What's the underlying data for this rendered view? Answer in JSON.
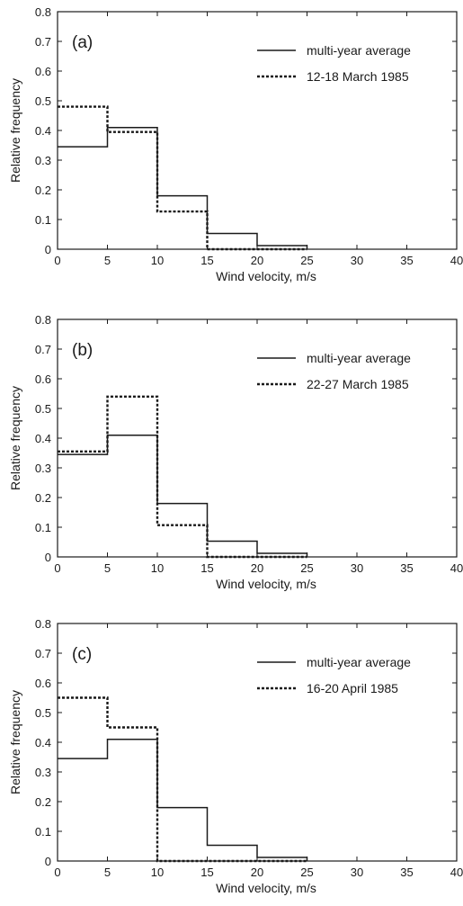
{
  "chart_data": [
    {
      "type": "line",
      "panel_label": "(a)",
      "xlabel": "Wind velocity, m/s",
      "ylabel": "Relative frequency",
      "xlim": [
        0,
        40
      ],
      "ylim": [
        0,
        0.8
      ],
      "x_ticks": [
        "0",
        "5",
        "10",
        "15",
        "20",
        "25",
        "30",
        "35",
        "40"
      ],
      "y_ticks": [
        "0",
        "0.1",
        "0.2",
        "0.3",
        "0.4",
        "0.5",
        "0.6",
        "0.7",
        "0.8"
      ],
      "grid": false,
      "legend_position": "top-right",
      "bin_edges": [
        0,
        5,
        10,
        15,
        20,
        25
      ],
      "series": [
        {
          "name": "multi-year average",
          "style": "solid",
          "values": [
            0.345,
            0.41,
            0.18,
            0.053,
            0.012
          ]
        },
        {
          "name": "12-18 March 1985",
          "style": "dashed",
          "values": [
            0.48,
            0.395,
            0.127,
            0,
            0
          ]
        }
      ]
    },
    {
      "type": "line",
      "panel_label": "(b)",
      "xlabel": "Wind velocity, m/s",
      "ylabel": "Relative frequency",
      "xlim": [
        0,
        40
      ],
      "ylim": [
        0,
        0.8
      ],
      "x_ticks": [
        "0",
        "5",
        "10",
        "15",
        "20",
        "25",
        "30",
        "35",
        "40"
      ],
      "y_ticks": [
        "0",
        "0.1",
        "0.2",
        "0.3",
        "0.4",
        "0.5",
        "0.6",
        "0.7",
        "0.8"
      ],
      "grid": false,
      "legend_position": "top-right",
      "bin_edges": [
        0,
        5,
        10,
        15,
        20,
        25
      ],
      "series": [
        {
          "name": "multi-year average",
          "style": "solid",
          "values": [
            0.345,
            0.41,
            0.18,
            0.053,
            0.012
          ]
        },
        {
          "name": "22-27 March 1985",
          "style": "dashed",
          "values": [
            0.355,
            0.54,
            0.107,
            0,
            0
          ]
        }
      ]
    },
    {
      "type": "line",
      "panel_label": "(c)",
      "xlabel": "Wind velocity, m/s",
      "ylabel": "Relative frequency",
      "xlim": [
        0,
        40
      ],
      "ylim": [
        0,
        0.8
      ],
      "x_ticks": [
        "0",
        "5",
        "10",
        "15",
        "20",
        "25",
        "30",
        "35",
        "40"
      ],
      "y_ticks": [
        "0",
        "0.1",
        "0.2",
        "0.3",
        "0.4",
        "0.5",
        "0.6",
        "0.7",
        "0.8"
      ],
      "grid": false,
      "legend_position": "top-right",
      "bin_edges": [
        0,
        5,
        10,
        15,
        20,
        25
      ],
      "series": [
        {
          "name": "multi-year average",
          "style": "solid",
          "values": [
            0.345,
            0.41,
            0.18,
            0.053,
            0.012
          ]
        },
        {
          "name": "16-20 April 1985",
          "style": "dashed",
          "values": [
            0.55,
            0.45,
            0,
            0,
            0
          ]
        }
      ]
    }
  ]
}
